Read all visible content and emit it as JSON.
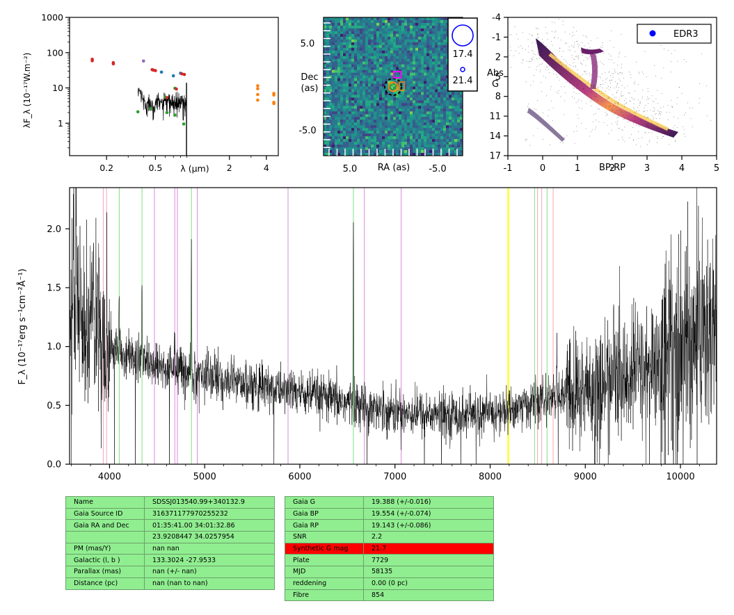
{
  "colors": {
    "line_pink": "#f4a6b8",
    "line_green": "#7ee07e",
    "line_violet": "#d88ad8",
    "line_yellow": "#ffff00",
    "sed_red": "#d62728",
    "sed_blue": "#1f77b4",
    "sed_purple": "#9467bd",
    "sed_green": "#2ca02c",
    "sed_orange": "#ff7f0e",
    "cell_green": "#90ee90",
    "cell_red": "#ff0000"
  },
  "sed": {
    "ylabel": "λF_λ (10⁻¹⁷W.m⁻²)",
    "xlabel": "λ (μm)",
    "x_ticks": [
      "0.2",
      "0.5",
      "2",
      "4"
    ],
    "y_ticks": [
      "1000",
      "100",
      "10",
      "1"
    ],
    "xlim": [
      0.1,
      5
    ],
    "ylim": [
      0.12,
      1000
    ],
    "points": [
      {
        "x": 0.153,
        "y": 65,
        "c": "sed_red"
      },
      {
        "x": 0.153,
        "y": 59,
        "c": "sed_red"
      },
      {
        "x": 0.227,
        "y": 52,
        "c": "sed_red"
      },
      {
        "x": 0.227,
        "y": 48,
        "c": "sed_red"
      },
      {
        "x": 0.4,
        "y": 58,
        "c": "sed_purple"
      },
      {
        "x": 0.47,
        "y": 33,
        "c": "sed_red"
      },
      {
        "x": 0.48,
        "y": 32,
        "c": "sed_red"
      },
      {
        "x": 0.5,
        "y": 31,
        "c": "sed_red"
      },
      {
        "x": 0.56,
        "y": 28,
        "c": "sed_blue"
      },
      {
        "x": 0.7,
        "y": 22,
        "c": "sed_blue"
      },
      {
        "x": 0.8,
        "y": 26,
        "c": "sed_blue"
      },
      {
        "x": 0.82,
        "y": 25,
        "c": "sed_red"
      },
      {
        "x": 0.86,
        "y": 24,
        "c": "sed_red"
      },
      {
        "x": 0.36,
        "y": 2.1,
        "c": "sed_green"
      },
      {
        "x": 0.46,
        "y": 2.6,
        "c": "sed_green"
      },
      {
        "x": 0.6,
        "y": 5.5,
        "c": "sed_green"
      },
      {
        "x": 0.62,
        "y": 5.3,
        "c": "sed_red"
      },
      {
        "x": 0.72,
        "y": 9.8,
        "c": "sed_green"
      },
      {
        "x": 0.74,
        "y": 9.3,
        "c": "sed_red"
      },
      {
        "x": 0.62,
        "y": 2.0,
        "c": "sed_green"
      },
      {
        "x": 0.72,
        "y": 1.7,
        "c": "sed_green"
      },
      {
        "x": 0.85,
        "y": 0.95,
        "c": "sed_green"
      },
      {
        "x": 3.4,
        "y": 11.5,
        "c": "sed_orange"
      },
      {
        "x": 3.4,
        "y": 9.5,
        "c": "sed_orange"
      },
      {
        "x": 3.4,
        "y": 6.5,
        "c": "sed_orange"
      },
      {
        "x": 3.4,
        "y": 4.5,
        "c": "sed_orange"
      },
      {
        "x": 4.6,
        "y": 7.0,
        "c": "sed_orange"
      },
      {
        "x": 4.6,
        "y": 6.3,
        "c": "sed_orange"
      },
      {
        "x": 4.6,
        "y": 3.9,
        "c": "sed_orange"
      },
      {
        "x": 4.6,
        "y": 3.6,
        "c": "sed_orange"
      }
    ]
  },
  "image": {
    "xlabel": "RA (as)",
    "ylabel": "Dec (as)",
    "x_ticks": [
      "5.0",
      "-5.0"
    ],
    "y_ticks": [
      "5.0",
      "-5.0"
    ],
    "legend": [
      "17.4",
      "21.4"
    ]
  },
  "cmd": {
    "xlabel": "BP-RP",
    "ylabel": "Abs G",
    "x_ticks": [
      "-1",
      "0",
      "1",
      "2",
      "3",
      "4",
      "5"
    ],
    "y_ticks": [
      "-4",
      "-1",
      "2",
      "5",
      "8",
      "11",
      "14",
      "17"
    ],
    "xlim": [
      -1,
      5
    ],
    "ylim": [
      17,
      -4
    ],
    "legend": "EDR3"
  },
  "chart_data": [
    {
      "type": "scatter",
      "name": "sed",
      "xlabel": "λ (μm)",
      "ylabel": "λF_λ (10⁻¹⁷W.m⁻²)",
      "log_x": true,
      "log_y": true
    },
    {
      "type": "line",
      "xlabel": "",
      "ylabel": "F_λ (10⁻¹⁷erg s⁻¹cm⁻²Å⁻¹)",
      "xlim": [
        3580,
        10380
      ],
      "ylim": [
        0,
        2.35
      ],
      "x_ticks": [
        "4000",
        "5000",
        "6000",
        "7000",
        "8000",
        "9000",
        "10000"
      ],
      "y_ticks": [
        "0.0",
        "0.5",
        "1.0",
        "1.5",
        "2.0"
      ],
      "continuum": [
        [
          3580,
          1.35
        ],
        [
          3700,
          1.2
        ],
        [
          3900,
          1.05
        ],
        [
          4100,
          0.95
        ],
        [
          4300,
          0.9
        ],
        [
          4600,
          0.82
        ],
        [
          5000,
          0.75
        ],
        [
          5500,
          0.68
        ],
        [
          6000,
          0.6
        ],
        [
          6500,
          0.52
        ],
        [
          7000,
          0.45
        ],
        [
          7500,
          0.42
        ],
        [
          8000,
          0.42
        ],
        [
          8300,
          0.48
        ],
        [
          8600,
          0.55
        ],
        [
          9000,
          0.62
        ],
        [
          9500,
          0.75
        ],
        [
          10000,
          0.95
        ],
        [
          10380,
          1.2
        ]
      ],
      "emission_peaks": [
        [
          4102,
          1.45
        ],
        [
          4341,
          1.65
        ],
        [
          4861,
          1.8
        ],
        [
          5007,
          0.75
        ],
        [
          6563,
          2.15
        ],
        [
          3970,
          1.2
        ],
        [
          3835,
          1.6
        ],
        [
          3889,
          1.45
        ],
        [
          4686,
          1.05
        ],
        [
          8700,
          0.95
        ],
        [
          9300,
          1.4
        ],
        [
          9550,
          1.15
        ],
        [
          9880,
          2.1
        ],
        [
          10200,
          1.8
        ],
        [
          3620,
          2.3
        ],
        [
          3650,
          2.35
        ]
      ],
      "vlines": [
        {
          "x": 3934,
          "c": "line_pink"
        },
        {
          "x": 3969,
          "c": "line_pink"
        },
        {
          "x": 4102,
          "c": "line_green"
        },
        {
          "x": 4341,
          "c": "line_green"
        },
        {
          "x": 4472,
          "c": "line_violet"
        },
        {
          "x": 4686,
          "c": "line_violet"
        },
        {
          "x": 4713,
          "c": "line_violet"
        },
        {
          "x": 4861,
          "c": "line_green"
        },
        {
          "x": 4922,
          "c": "line_violet"
        },
        {
          "x": 5876,
          "c": "line_violet"
        },
        {
          "x": 6563,
          "c": "line_green"
        },
        {
          "x": 6678,
          "c": "line_violet"
        },
        {
          "x": 7065,
          "c": "line_violet"
        },
        {
          "x": 8190,
          "c": "line_yellow"
        },
        {
          "x": 8467,
          "c": "line_green"
        },
        {
          "x": 8498,
          "c": "line_pink"
        },
        {
          "x": 8542,
          "c": "line_pink"
        },
        {
          "x": 8598,
          "c": "line_green"
        },
        {
          "x": 8662,
          "c": "line_pink"
        }
      ]
    }
  ],
  "table_left": [
    [
      "Name",
      "SDSSJ013540.99+340132.9"
    ],
    [
      "Gaia Source ID",
      "316371177970255232"
    ],
    [
      "Gaia RA and Dec",
      "01:35:41.00    34:01:32.86"
    ],
    [
      "",
      "23.9208447    34.0257954"
    ],
    [
      "PM (mas/Y)",
      "nan    nan"
    ],
    [
      "Galactic (l, b )",
      "133.3024    -27.9533"
    ],
    [
      "Parallax (mas)",
      "nan (+/- nan)"
    ],
    [
      "Distance (pc)",
      "nan (nan to nan)"
    ]
  ],
  "table_right": [
    [
      "Gaia G",
      "19.388 (+/-0.016)"
    ],
    [
      "Gaia BP",
      "19.554 (+/-0.074)"
    ],
    [
      "Gaia RP",
      "19.143 (+/-0.086)"
    ],
    [
      "SNR",
      "2.2"
    ],
    [
      "Synthetic G mag",
      "21.7"
    ],
    [
      "Plate",
      "7729"
    ],
    [
      "MJD",
      "58135"
    ],
    [
      "reddening",
      "0.00 (0 pc)"
    ],
    [
      "Fibre",
      "854"
    ]
  ]
}
